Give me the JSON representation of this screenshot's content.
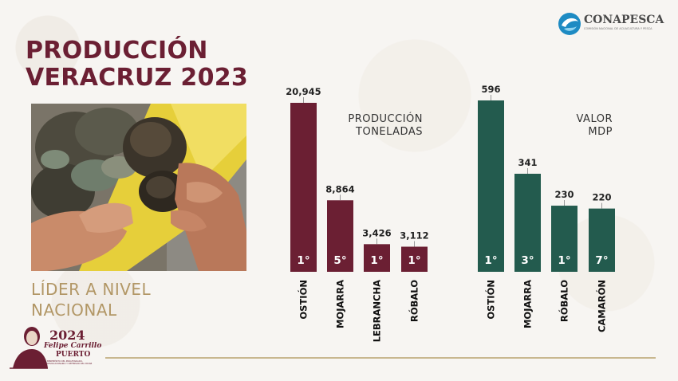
{
  "header": {
    "title_line1": "PRODUCCIÓN",
    "title_line2": "VERACRUZ 2023"
  },
  "subtitle": {
    "line1": "LÍDER A NIVEL",
    "line2": "NACIONAL"
  },
  "logo": {
    "name": "CONAPESCA",
    "subtitle": "COMISIÓN NACIONAL DE ACUACULTURA Y PESCA",
    "icon": "fish-swirl-icon"
  },
  "badge": {
    "year": "2024",
    "name_line1": "Felipe Carrillo",
    "name_line2": "PUERTO",
    "subtitle": "BENEMÉRITO DEL PROLETARIADO, REVOLUCIONARIO Y DEFENSOR DEL MAYAB",
    "icon": "portrait-icon"
  },
  "photo": {
    "icon": "oyster-photo"
  },
  "colors": {
    "production": "#6b1f33",
    "value": "#235b4e",
    "title": "#6b1f33",
    "leader": "#b29766"
  },
  "chart_data": [
    {
      "type": "bar",
      "title_line1": "PRODUCCIÓN",
      "title_line2": "TONELADAS",
      "categories": [
        "OSTIÓN",
        "MOJARRA",
        "LEBRANCHA",
        "RÓBALO"
      ],
      "values": [
        20945,
        8864,
        3426,
        3112
      ],
      "value_labels": [
        "20,945",
        "8,864",
        "3,426",
        "3,112"
      ],
      "ranks": [
        "1°",
        "5°",
        "1°",
        "1°"
      ],
      "ylim": [
        0,
        20945
      ]
    },
    {
      "type": "bar",
      "title_line1": "VALOR",
      "title_line2": "MDP",
      "categories": [
        "OSTIÓN",
        "MOJARRA",
        "RÓBALO",
        "CAMARÓN"
      ],
      "values": [
        596,
        341,
        230,
        220
      ],
      "value_labels": [
        "596",
        "341",
        "230",
        "220"
      ],
      "ranks": [
        "1°",
        "3°",
        "1°",
        "7°"
      ],
      "ylim": [
        0,
        596
      ]
    }
  ]
}
